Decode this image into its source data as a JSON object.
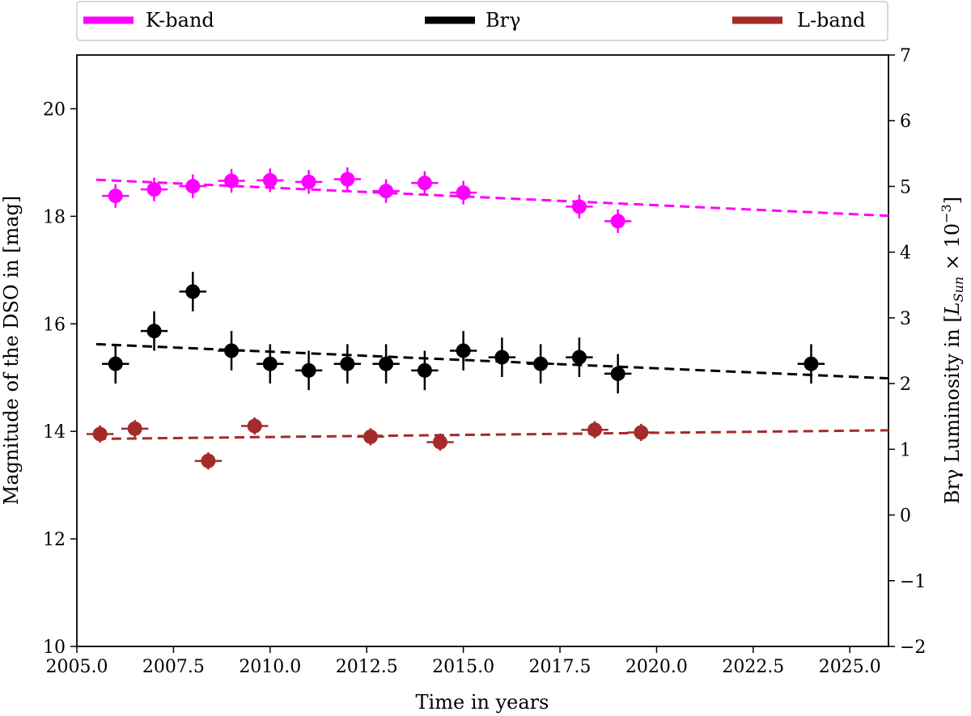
{
  "chart_data": {
    "type": "scatter",
    "x_axis": {
      "label": "Time in years",
      "range": [
        2005.0,
        2026.0
      ],
      "ticks": [
        2005.0,
        2007.5,
        2010.0,
        2012.5,
        2015.0,
        2017.5,
        2020.0,
        2022.5,
        2025.0
      ],
      "tick_labels": [
        "2005.0",
        "2007.5",
        "2010.0",
        "2012.5",
        "2015.0",
        "2017.5",
        "2020.0",
        "2022.5",
        "2025.0"
      ]
    },
    "y_axis_left": {
      "label": "Magnitude of the DSO in [mag]",
      "range": [
        10,
        21
      ],
      "ticks": [
        10,
        12,
        14,
        16,
        18,
        20
      ],
      "tick_labels": [
        "10",
        "12",
        "14",
        "16",
        "18",
        "20"
      ]
    },
    "y_axis_right": {
      "label_prefix": "Brγ Luminosity in [",
      "label_var": "L",
      "label_sub": "Sun",
      "label_mid": " × 10",
      "label_sup": "−3",
      "label_suffix": "]",
      "range": [
        -2,
        7
      ],
      "ticks": [
        -2,
        -1,
        0,
        1,
        2,
        3,
        4,
        5,
        6,
        7
      ],
      "tick_labels": [
        "−2",
        "−1",
        "0",
        "1",
        "2",
        "3",
        "4",
        "5",
        "6",
        "7"
      ]
    },
    "legend": {
      "placement": "top, above plot",
      "entries": [
        {
          "label": "K-band",
          "color": "#ff00ff"
        },
        {
          "label": "Brγ",
          "color": "#000000"
        },
        {
          "label": "L-band",
          "color": "#a52a2a"
        }
      ]
    },
    "series": [
      {
        "name": "K-band",
        "axis": "left",
        "color": "#ff00ff",
        "marker_size": 9,
        "xerr": 0.35,
        "points": [
          {
            "x": 2006.0,
            "y": 18.38,
            "yerr": 0.22
          },
          {
            "x": 2007.0,
            "y": 18.5,
            "yerr": 0.22
          },
          {
            "x": 2008.0,
            "y": 18.56,
            "yerr": 0.22
          },
          {
            "x": 2009.0,
            "y": 18.66,
            "yerr": 0.22
          },
          {
            "x": 2010.0,
            "y": 18.67,
            "yerr": 0.22
          },
          {
            "x": 2011.0,
            "y": 18.64,
            "yerr": 0.22
          },
          {
            "x": 2012.0,
            "y": 18.69,
            "yerr": 0.22
          },
          {
            "x": 2013.0,
            "y": 18.47,
            "yerr": 0.22
          },
          {
            "x": 2014.0,
            "y": 18.62,
            "yerr": 0.22
          },
          {
            "x": 2015.0,
            "y": 18.44,
            "yerr": 0.22
          },
          {
            "x": 2018.0,
            "y": 18.18,
            "yerr": 0.22
          },
          {
            "x": 2019.0,
            "y": 17.91,
            "yerr": 0.22
          }
        ],
        "fit": {
          "x": [
            2005.5,
            2026.0
          ],
          "y": [
            18.68,
            18.01
          ]
        }
      },
      {
        "name": "Brγ",
        "axis": "right",
        "color": "#000000",
        "marker_size": 9,
        "xerr": 0.35,
        "points": [
          {
            "x": 2006.0,
            "y": 2.3,
            "yerr": 0.3
          },
          {
            "x": 2007.0,
            "y": 2.8,
            "yerr": 0.3
          },
          {
            "x": 2008.0,
            "y": 3.4,
            "yerr": 0.3
          },
          {
            "x": 2009.0,
            "y": 2.5,
            "yerr": 0.3
          },
          {
            "x": 2010.0,
            "y": 2.3,
            "yerr": 0.3
          },
          {
            "x": 2011.0,
            "y": 2.2,
            "yerr": 0.3
          },
          {
            "x": 2012.0,
            "y": 2.3,
            "yerr": 0.3
          },
          {
            "x": 2013.0,
            "y": 2.3,
            "yerr": 0.3
          },
          {
            "x": 2014.0,
            "y": 2.2,
            "yerr": 0.3
          },
          {
            "x": 2015.0,
            "y": 2.5,
            "yerr": 0.3
          },
          {
            "x": 2016.0,
            "y": 2.4,
            "yerr": 0.3
          },
          {
            "x": 2017.0,
            "y": 2.3,
            "yerr": 0.3
          },
          {
            "x": 2018.0,
            "y": 2.4,
            "yerr": 0.3
          },
          {
            "x": 2019.0,
            "y": 2.15,
            "yerr": 0.3
          },
          {
            "x": 2024.0,
            "y": 2.3,
            "yerr": 0.3
          }
        ],
        "fit": {
          "x": [
            2005.5,
            2026.0
          ],
          "y": [
            2.6,
            2.08
          ]
        }
      },
      {
        "name": "L-band",
        "axis": "left",
        "color": "#a52a2a",
        "marker_size": 9,
        "xerr": 0.35,
        "points": [
          {
            "x": 2005.6,
            "y": 13.95,
            "yerr": 0.16
          },
          {
            "x": 2006.5,
            "y": 14.05,
            "yerr": 0.16
          },
          {
            "x": 2008.4,
            "y": 13.45,
            "yerr": 0.16
          },
          {
            "x": 2009.6,
            "y": 14.1,
            "yerr": 0.16
          },
          {
            "x": 2012.6,
            "y": 13.9,
            "yerr": 0.16
          },
          {
            "x": 2014.4,
            "y": 13.8,
            "yerr": 0.16
          },
          {
            "x": 2018.4,
            "y": 14.03,
            "yerr": 0.16
          },
          {
            "x": 2019.6,
            "y": 13.98,
            "yerr": 0.16
          }
        ],
        "fit": {
          "x": [
            2005.5,
            2026.0
          ],
          "y": [
            13.86,
            14.02
          ]
        }
      }
    ],
    "grid": false
  }
}
